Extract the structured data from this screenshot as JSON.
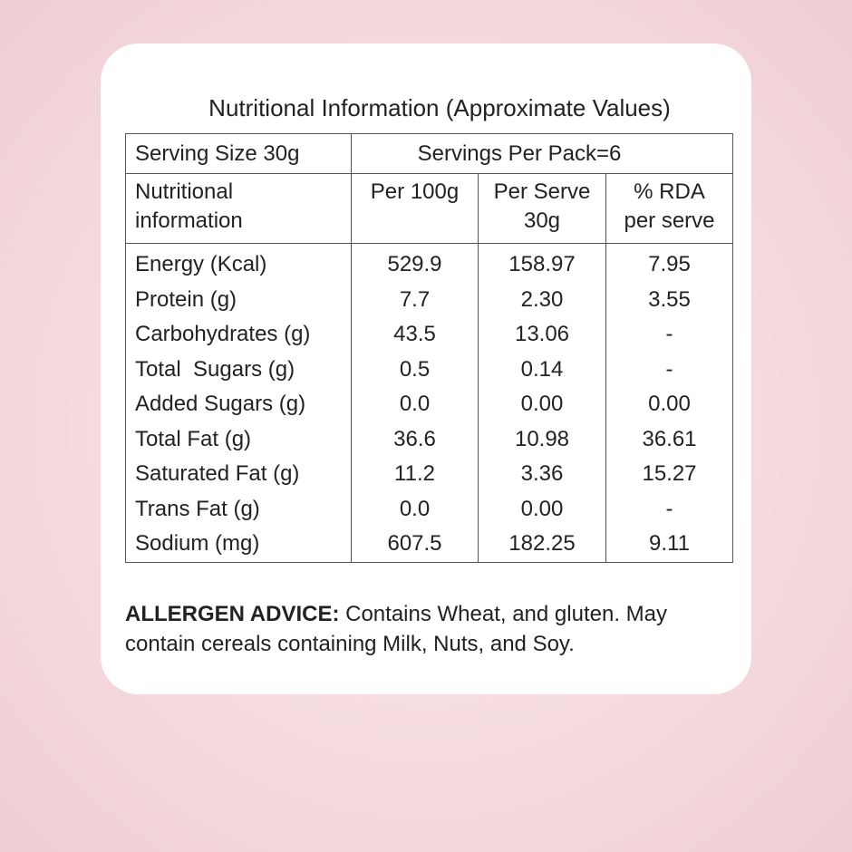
{
  "title": "Nutritional Information (Approximate Values)",
  "serving": {
    "size": "Serving Size 30g",
    "per_pack": "Servings Per Pack=6"
  },
  "headers": {
    "nutrient": [
      "Nutritional",
      "information"
    ],
    "per100": "Per 100g",
    "per_serve": [
      "Per Serve",
      "30g"
    ],
    "rda": [
      "% RDA",
      "per serve"
    ]
  },
  "rows": [
    {
      "name": "Energy (Kcal)",
      "per100": "529.9",
      "per_serve": "158.97",
      "rda": "7.95"
    },
    {
      "name": "Protein (g)",
      "per100": "7.7",
      "per_serve": "2.30",
      "rda": "3.55"
    },
    {
      "name": "Carbohydrates (g)",
      "per100": "43.5",
      "per_serve": "13.06",
      "rda": "-"
    },
    {
      "name": "Total  Sugars (g)",
      "per100": "0.5",
      "per_serve": "0.14",
      "rda": "-"
    },
    {
      "name": "Added Sugars (g)",
      "per100": "0.0",
      "per_serve": "0.00",
      "rda": "0.00"
    },
    {
      "name": "Total Fat (g)",
      "per100": "36.6",
      "per_serve": "10.98",
      "rda": "36.61"
    },
    {
      "name": "Saturated Fat (g)",
      "per100": "11.2",
      "per_serve": "3.36",
      "rda": "15.27"
    },
    {
      "name": "Trans Fat (g)",
      "per100": "0.0",
      "per_serve": "0.00",
      "rda": "-"
    },
    {
      "name": "Sodium (mg)",
      "per100": "607.5",
      "per_serve": "182.25",
      "rda": "9.11"
    }
  ],
  "allergen": {
    "label": "ALLERGEN ADVICE:",
    "text": " Contains Wheat, and gluten. May contain cereals containing Milk, Nuts, and Soy."
  }
}
